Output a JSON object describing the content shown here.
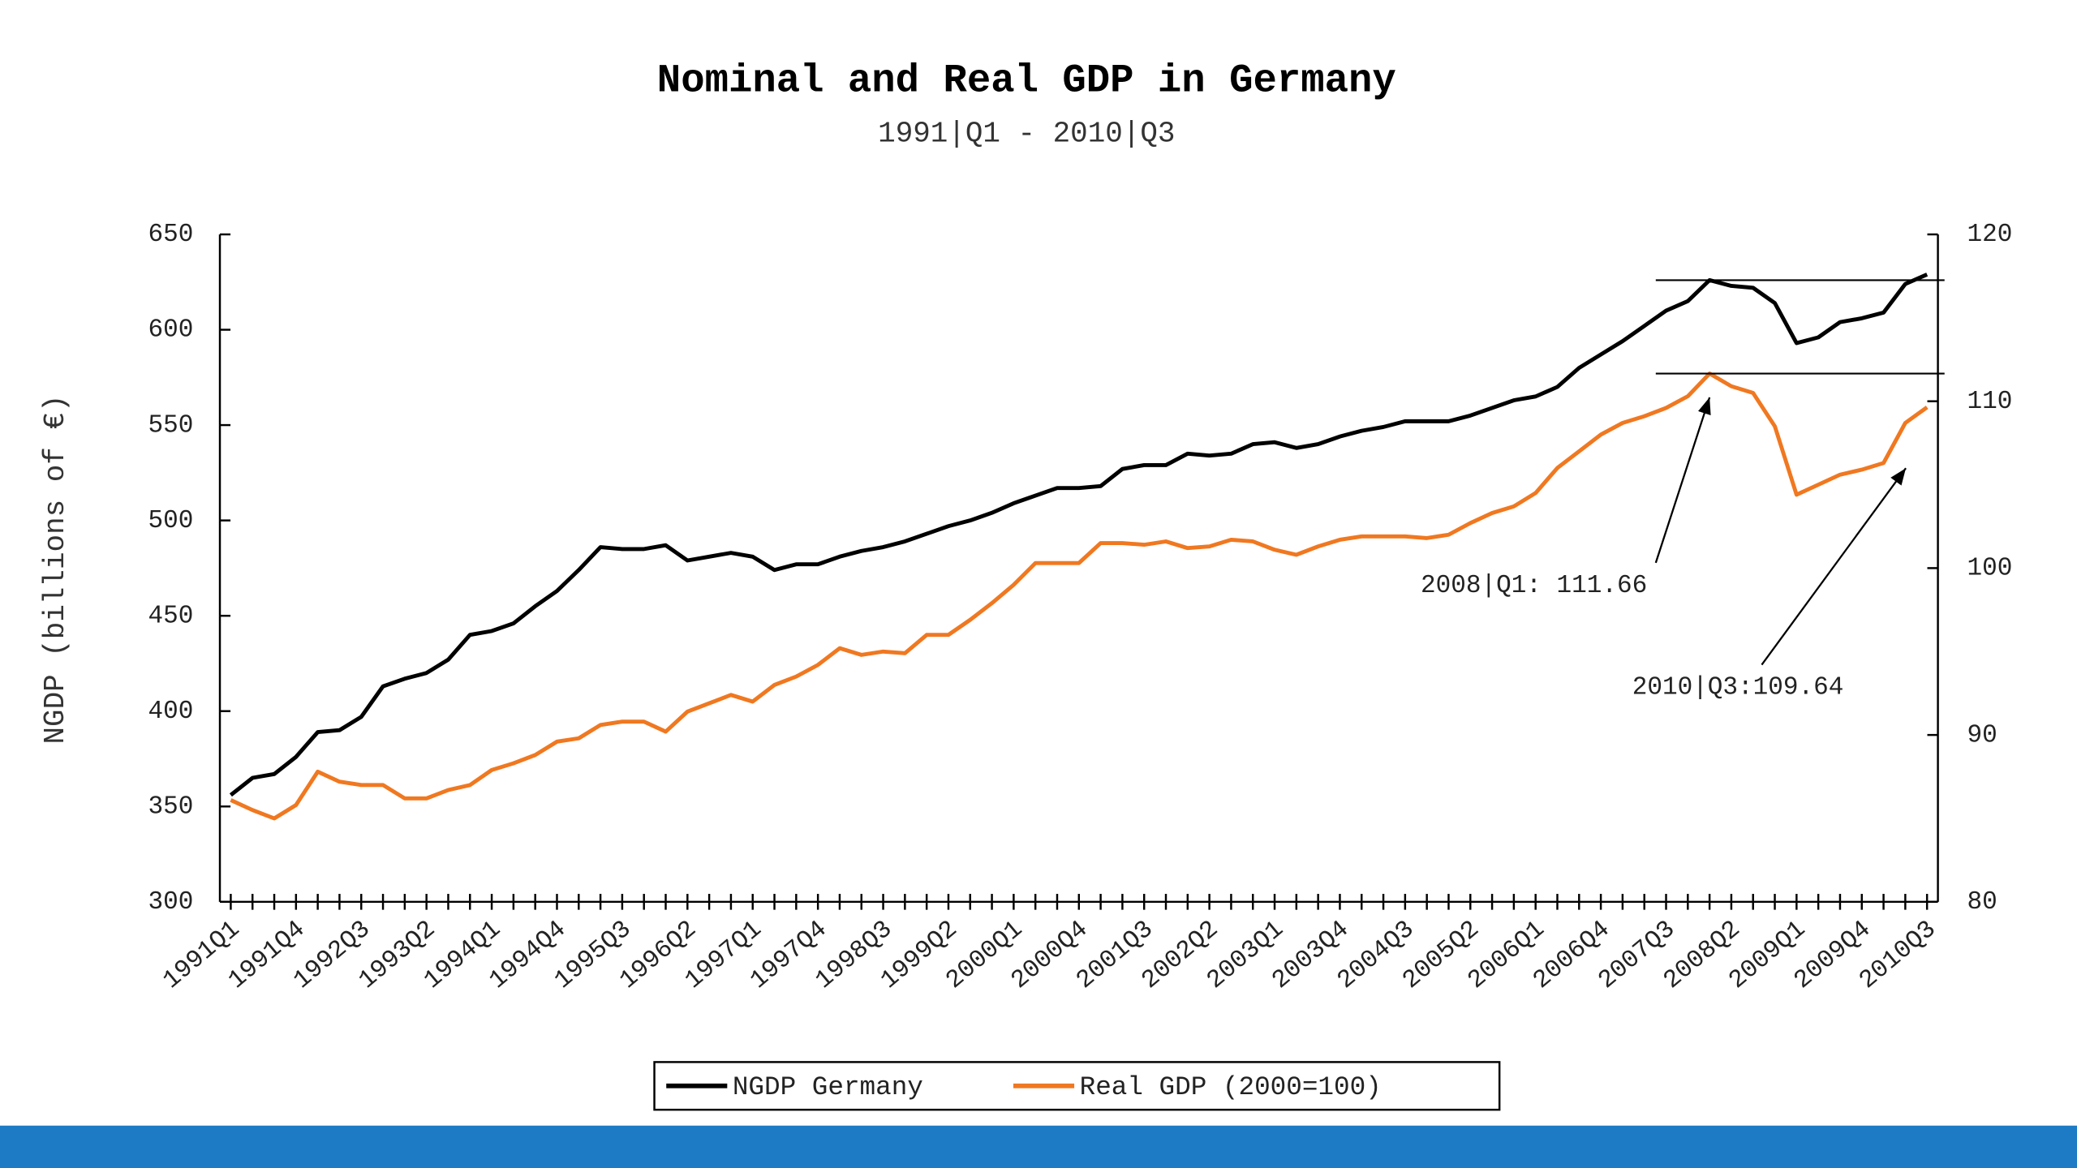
{
  "chart_data": {
    "type": "line",
    "title": "Nominal and Real GDP in Germany",
    "subtitle": "1991|Q1 - 2010|Q3",
    "y_label": "NGDP (billions of €)",
    "categories": [
      "1991Q1",
      null,
      null,
      "1991Q4",
      null,
      null,
      "1992Q3",
      null,
      null,
      "1993Q2",
      null,
      null,
      "1994Q1",
      null,
      null,
      "1994Q4",
      null,
      null,
      "1995Q3",
      null,
      null,
      "1996Q2",
      null,
      null,
      "1997Q1",
      null,
      null,
      "1997Q4",
      null,
      null,
      "1998Q3",
      null,
      null,
      "1999Q2",
      null,
      null,
      "2000Q1",
      null,
      null,
      "2000Q4",
      null,
      null,
      "2001Q3",
      null,
      null,
      "2002Q2",
      null,
      null,
      "2003Q1",
      null,
      null,
      "2003Q4",
      null,
      null,
      "2004Q3",
      null,
      null,
      "2005Q2",
      null,
      null,
      "2006Q1",
      null,
      null,
      "2006Q4",
      null,
      null,
      "2007Q3",
      null,
      null,
      "2008Q2",
      null,
      null,
      "2009Q1",
      null,
      null,
      "2009Q4",
      null,
      null,
      "2010Q3"
    ],
    "series": [
      {
        "name": "NGDP Germany",
        "color": "#000000",
        "axis": "y",
        "values": [
          356,
          365,
          367,
          376,
          389,
          390,
          397,
          413,
          417,
          420,
          427,
          440,
          442,
          446,
          455,
          463,
          474,
          486,
          485,
          485,
          487,
          479,
          481,
          483,
          481,
          474,
          477,
          477,
          481,
          484,
          486,
          489,
          493,
          497,
          500,
          504,
          509,
          513,
          517,
          517,
          518,
          527,
          529,
          529,
          535,
          534,
          535,
          540,
          541,
          538,
          540,
          544,
          547,
          549,
          552,
          552,
          552,
          555,
          559,
          563,
          565,
          570,
          580,
          587,
          594,
          602,
          610,
          615,
          626,
          623,
          622,
          614,
          593,
          596,
          604,
          606,
          609,
          624,
          629
        ]
      },
      {
        "name": "Real GDP (2000=100)",
        "color": "#f07820",
        "axis": "y2",
        "values": [
          86.1,
          85.5,
          85.0,
          85.8,
          87.8,
          87.2,
          87.0,
          87.0,
          86.2,
          86.2,
          86.7,
          87.0,
          87.9,
          88.3,
          88.8,
          89.6,
          89.8,
          90.6,
          90.8,
          90.8,
          90.2,
          91.4,
          91.9,
          92.4,
          92.0,
          93.0,
          93.5,
          94.2,
          95.2,
          94.8,
          95.0,
          94.9,
          96.0,
          96.0,
          96.9,
          97.9,
          99.0,
          100.3,
          100.3,
          100.3,
          101.5,
          101.5,
          101.4,
          101.6,
          101.2,
          101.3,
          101.7,
          101.6,
          101.1,
          100.8,
          101.3,
          101.7,
          101.9,
          101.9,
          101.9,
          101.8,
          102.0,
          102.7,
          103.3,
          103.7,
          104.5,
          106.0,
          107.0,
          108.0,
          108.7,
          109.1,
          109.6,
          110.3,
          111.66,
          110.9,
          110.5,
          108.5,
          104.4,
          105.0,
          105.6,
          105.9,
          106.3,
          108.7,
          109.64
        ]
      }
    ],
    "ylim": [
      300,
      650
    ],
    "yticks": [
      300,
      350,
      400,
      450,
      500,
      550,
      600,
      650
    ],
    "y2lim": [
      80,
      120
    ],
    "y2ticks": [
      80,
      90,
      100,
      110,
      120
    ],
    "annotations": [
      {
        "text": "2008|Q1: 111.66"
      },
      {
        "text": "2010|Q3:109.64"
      }
    ],
    "legend": "bottom"
  }
}
